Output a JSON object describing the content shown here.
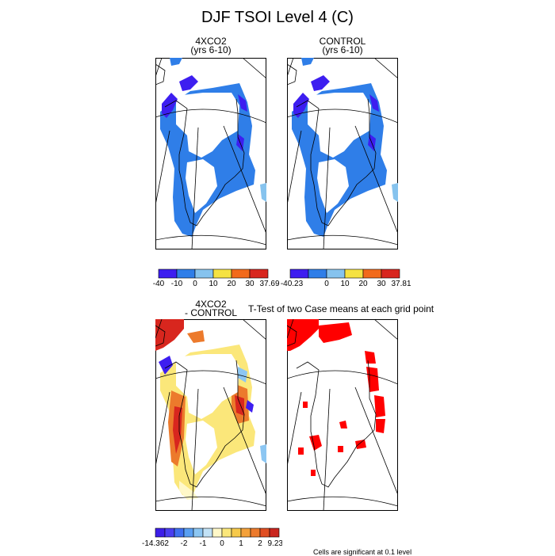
{
  "main_title": "DJF TSOI Level 4 (C)",
  "panels": [
    {
      "id": "4xco2",
      "title_line1": "4XCO2",
      "title_line2": "(yrs 6-10)"
    },
    {
      "id": "control",
      "title_line1": "CONTROL",
      "title_line2": "(yrs 6-10)"
    },
    {
      "id": "diff",
      "title_line1": "4XCO2",
      "title_line2": "- CONTROL"
    },
    {
      "id": "ttest",
      "title_line1": "",
      "title_line2": ""
    }
  ],
  "ttest_title": "T-Test of two Case means at each grid point",
  "significance_note": "Cells are significant at 0.1 level",
  "colors": {
    "deep_blue": "#3d1ef0",
    "blue": "#2f7ee8",
    "light_blue": "#86c3ee",
    "yellow": "#f5e242",
    "orange": "#f26a1b",
    "red": "#d8261e",
    "sig_red": "#ff0000"
  },
  "chart_data": [
    {
      "type": "heatmap",
      "title": "4XCO2 (yrs 6-10)",
      "colorbar": {
        "boundaries": [
          "-40",
          "-10",
          "0",
          "10",
          "20",
          "30",
          "37.69"
        ],
        "colors": [
          "#3d1ef0",
          "#2f7ee8",
          "#86c3ee",
          "#f5e242",
          "#f26a1b",
          "#d8261e"
        ]
      }
    },
    {
      "type": "heatmap",
      "title": "CONTROL (yrs 6-10)",
      "colorbar": {
        "boundaries": [
          "-40.23",
          "",
          "0",
          "10",
          "20",
          "30",
          "37.81"
        ],
        "colors": [
          "#3d1ef0",
          "#2f7ee8",
          "#86c3ee",
          "#f5e242",
          "#f26a1b",
          "#d8261e"
        ]
      }
    },
    {
      "type": "heatmap",
      "title": "4XCO2 - CONTROL",
      "colorbar": {
        "labels": [
          "-14.362",
          "-2",
          "-1",
          "0",
          "1",
          "2",
          "9.238"
        ],
        "colors": [
          "#3c1ee8",
          "#4a3ef0",
          "#3f6ff0",
          "#5aa0f2",
          "#8cc6f2",
          "#c2e2f6",
          "#fff8c8",
          "#fbe77a",
          "#f6c94a",
          "#f4a13a",
          "#ec7a2c",
          "#e04e22",
          "#c9251e"
        ]
      }
    },
    {
      "type": "heatmap",
      "title": "T-Test of two Case means at each grid point",
      "note": "Cells are significant at 0.1 level"
    }
  ]
}
